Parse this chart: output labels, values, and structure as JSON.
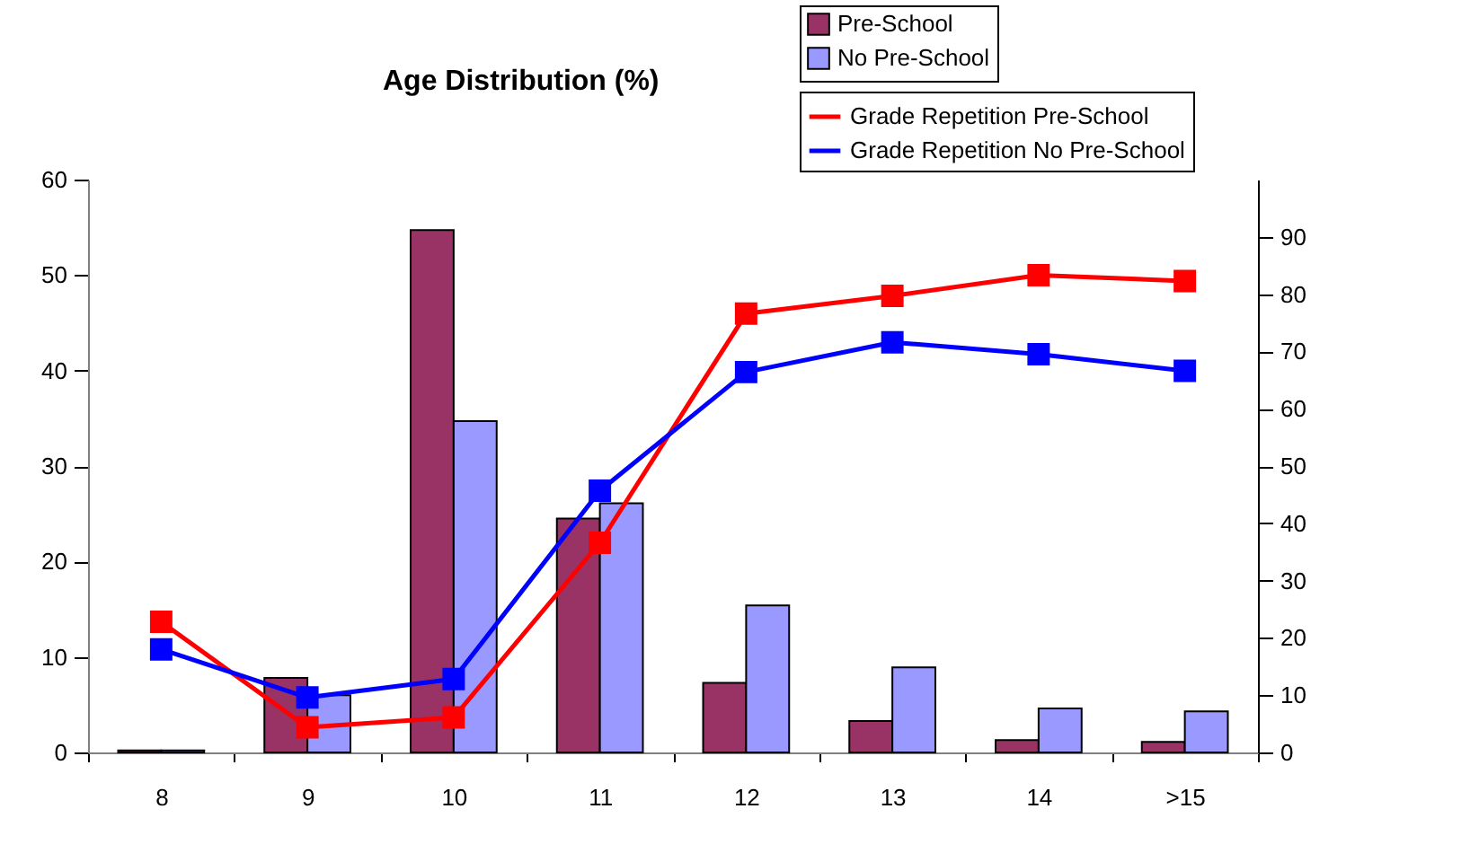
{
  "chart_data": {
    "type": "bar",
    "title": "Age Distribution (%)",
    "categories": [
      "8",
      "9",
      "10",
      "11",
      "12",
      "13",
      "14",
      ">15"
    ],
    "series": [
      {
        "name": "Pre-School",
        "color": "#993366",
        "values": [
          0.2,
          7.8,
          54.7,
          24.5,
          7.3,
          3.3,
          1.3,
          1.1
        ]
      },
      {
        "name": "No Pre-School",
        "color": "#9999ff",
        "values": [
          0.2,
          6.0,
          34.7,
          26.1,
          15.4,
          8.9,
          4.6,
          4.3
        ]
      },
      {
        "name": "Grade Repetition Pre-School",
        "type": "line",
        "axis": "y2",
        "color": "#ff0000",
        "values": [
          22.8,
          4.4,
          6.1,
          36.6,
          76.6,
          79.7,
          83.3,
          82.3
        ]
      },
      {
        "name": "Grade Repetition No Pre-School",
        "type": "line",
        "axis": "y2",
        "color": "#0000ff",
        "values": [
          18.0,
          9.6,
          12.8,
          45.7,
          66.4,
          71.6,
          69.5,
          66.6
        ]
      }
    ],
    "ylim": [
      0,
      60
    ],
    "yticks": [
      0,
      10,
      20,
      30,
      40,
      50,
      60
    ],
    "y2lim": [
      0,
      100
    ],
    "y2ticks": [
      0,
      10,
      20,
      30,
      40,
      50,
      60,
      70,
      80,
      90
    ],
    "legend": "top right",
    "marker": "square",
    "line_style": "solid",
    "grid": false
  }
}
